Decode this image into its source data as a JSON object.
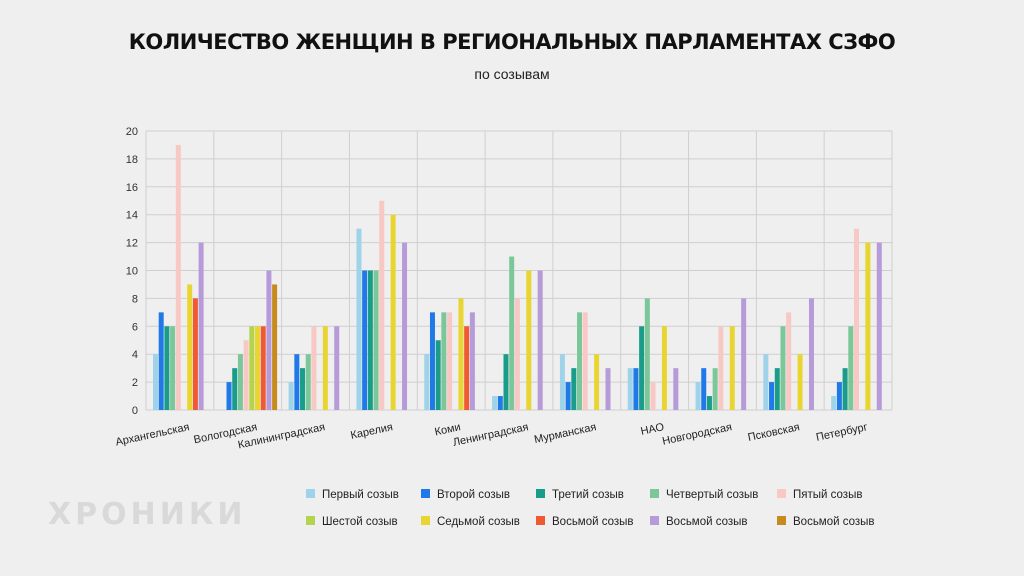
{
  "chart_data": {
    "type": "bar",
    "title": "КОЛИЧЕСТВО ЖЕНЩИН В РЕГИОНАЛЬНЫХ ПАРЛАМЕНТАХ СЗФО",
    "subtitle": "по созывам",
    "xlabel": "",
    "ylabel": "",
    "ylim": [
      0,
      20
    ],
    "yticks": [
      "0",
      "2",
      "4",
      "6",
      "8",
      "10",
      "12",
      "14",
      "16",
      "18",
      "20"
    ],
    "grid": true,
    "legend_position": "bottom-right",
    "categories": [
      "Архангельская",
      "Вологодская",
      "Калининградская",
      "Карелия",
      "Коми",
      "Ленинградская",
      "Мурманская",
      "НАО",
      "Новгородская",
      "Псковская",
      "Петербург"
    ],
    "series": [
      {
        "name": "Первый созыв",
        "color": "#9fd3ea",
        "values": [
          4,
          0,
          2,
          13,
          4,
          1,
          4,
          3,
          2,
          4,
          1
        ]
      },
      {
        "name": "Второй созыв",
        "color": "#1f7ae8",
        "values": [
          7,
          2,
          4,
          10,
          7,
          1,
          2,
          3,
          3,
          2,
          2
        ]
      },
      {
        "name": "Третий созыв",
        "color": "#1a9c8a",
        "values": [
          6,
          3,
          3,
          10,
          5,
          4,
          3,
          6,
          1,
          3,
          3
        ]
      },
      {
        "name": "Четвертый созыв",
        "color": "#7cc79a",
        "values": [
          6,
          4,
          4,
          10,
          7,
          11,
          7,
          8,
          3,
          6,
          6
        ]
      },
      {
        "name": "Пятый созыв",
        "color": "#f8c9c4",
        "values": [
          19,
          5,
          6,
          15,
          7,
          8,
          7,
          2,
          6,
          7,
          13
        ]
      },
      {
        "name": "Шестой созыв",
        "color": "#b5d44e",
        "values": [
          0,
          6,
          0,
          0,
          0,
          0,
          0,
          0,
          0,
          0,
          0
        ]
      },
      {
        "name": "Седьмой созыв",
        "color": "#e9d531",
        "values": [
          9,
          6,
          6,
          14,
          8,
          10,
          4,
          6,
          6,
          4,
          12
        ]
      },
      {
        "name": "Восьмой созыв",
        "color": "#f05a32",
        "values": [
          8,
          6,
          0,
          0,
          6,
          0,
          0,
          0,
          0,
          0,
          0
        ]
      },
      {
        "name": "Восьмой созыв",
        "color": "#b79ad8",
        "values": [
          12,
          10,
          6,
          12,
          7,
          10,
          3,
          3,
          8,
          8,
          12
        ]
      },
      {
        "name": "Восьмой созыв",
        "color": "#c78a1e",
        "values": [
          0,
          9,
          0,
          0,
          0,
          0,
          0,
          0,
          0,
          0,
          0
        ]
      }
    ]
  },
  "watermark": "ХРОНИКИ"
}
